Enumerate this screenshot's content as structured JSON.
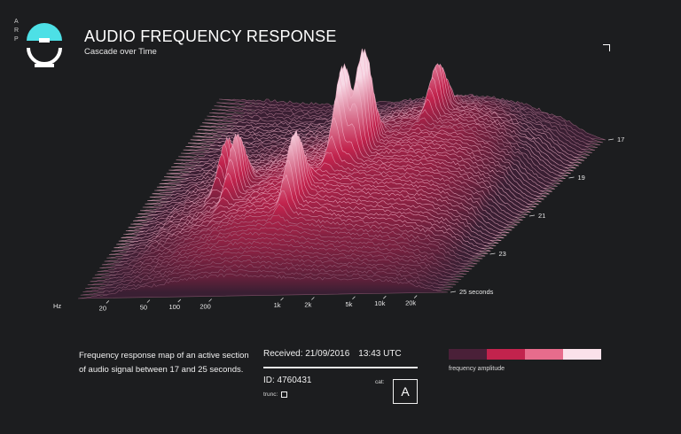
{
  "header": {
    "logo_letters": [
      "A",
      "R",
      "P"
    ],
    "title": "AUDIO FREQUENCY RESPONSE",
    "subtitle": "Cascade over Time"
  },
  "colors": {
    "background": "#1c1d1f",
    "accent_cyan": "#4de0e6",
    "ridge_dark": "#3a1f33",
    "ridge_mid": "#c2234d",
    "ridge_light": "#f7d9e5"
  },
  "chart_data": {
    "type": "area",
    "style": "3d waterfall / cascade",
    "x_unit_label": "Hz",
    "x_tick_labels": [
      "20",
      "50",
      "100",
      "200",
      "1k",
      "2k",
      "5k",
      "10k",
      "20k"
    ],
    "x_tick_values": [
      20,
      50,
      100,
      200,
      1000,
      2000,
      5000,
      10000,
      20000
    ],
    "x_range": [
      10,
      40000
    ],
    "x_scale": "log",
    "z_tick_labels": [
      "17",
      "19",
      "21",
      "23",
      "25 seconds"
    ],
    "z_tick_values": [
      17,
      19,
      21,
      23,
      25
    ],
    "z_range": [
      17,
      25
    ],
    "approx_peaks": [
      {
        "time": 20.2,
        "freq": 800,
        "amplitude": 0.92
      },
      {
        "time": 20.6,
        "freq": 600,
        "amplitude": 0.85
      },
      {
        "time": 21.8,
        "freq": 95,
        "amplitude": 0.55
      },
      {
        "time": 21.2,
        "freq": 60,
        "amplitude": 0.45
      },
      {
        "time": 22.5,
        "freq": 450,
        "amplitude": 0.6
      },
      {
        "time": 18.5,
        "freq": 2000,
        "amplitude": 0.45
      }
    ]
  },
  "description": "Frequency response map of an active section of audio signal between 17 and 25 seconds.",
  "meta": {
    "received_label": "Received: 21/09/2016",
    "time": "13:43 UTC",
    "id": "ID: 4760431",
    "trunc_label": "trunc:",
    "cat_label": "cat:",
    "cat_value": "A"
  },
  "legend": {
    "label": "frequency amplitude",
    "colors": [
      "#4a2038",
      "#c2234d",
      "#e76c8c",
      "#fbe1ea"
    ]
  }
}
